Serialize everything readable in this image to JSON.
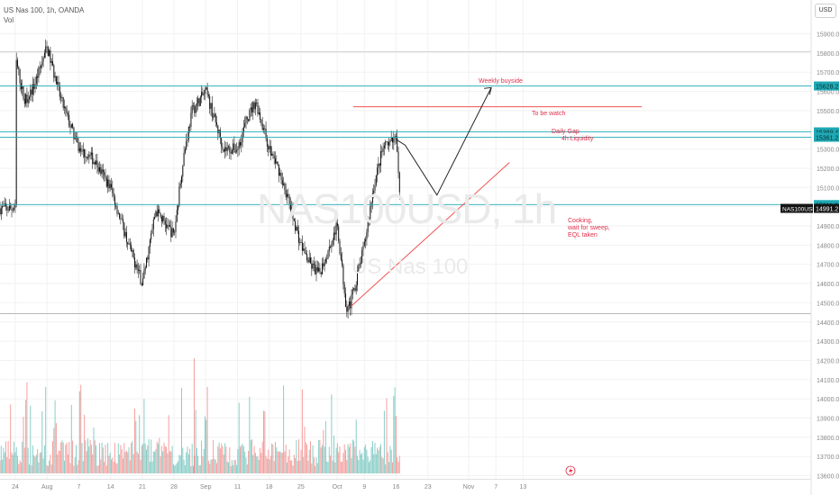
{
  "header": {
    "line1": "US Nas 100, 1h, OANDA",
    "line2": "Vol"
  },
  "currency_button": "USD",
  "watermark": {
    "symbol": "NAS100USD, 1h",
    "name": "US Nas 100"
  },
  "colors": {
    "up": "#26a69a",
    "down": "#ef5350",
    "level": "#1fa9b4",
    "annotation": "#e0314b",
    "axis_text": "#888888"
  },
  "annotations": {
    "weekly_buyside": "Weekly buyside",
    "to_be_watch": "To be watch",
    "daily_gap": "Daily Gap",
    "liquidity_4h": "4h Liquidity",
    "cooking": [
      "Cooking,",
      "wait for sweep,",
      "EQL taken"
    ]
  },
  "chart_data": {
    "type": "candlestick",
    "title": "US Nas 100, 1h, OANDA",
    "symbol": "NAS100USD",
    "xlabel": "",
    "ylabel": "",
    "ylim": [
      13600,
      15900
    ],
    "y_ticks": [
      15900,
      15800,
      15700,
      15600,
      15500,
      15400,
      15300,
      15200,
      15100,
      15000,
      14900,
      14800,
      14700,
      14600,
      14500,
      14400,
      14300,
      14200,
      14100,
      14000,
      13900,
      13800,
      13700,
      13600
    ],
    "x_ticks": [
      "24",
      "Aug",
      "7",
      "14",
      "21",
      "28",
      "Sep",
      "11",
      "18",
      "25",
      "Oct",
      "9",
      "16",
      "23",
      "Nov",
      "7",
      "13"
    ],
    "price_path": [
      [
        "Jul 24",
        15780
      ],
      [
        "Jul 26",
        15550
      ],
      [
        "Jul 28",
        15620
      ],
      [
        "Jul 31",
        15830
      ],
      [
        "Aug 3",
        15560
      ],
      [
        "Aug 7",
        15300
      ],
      [
        "Aug 10",
        15250
      ],
      [
        "Aug 14",
        15100
      ],
      [
        "Aug 18",
        14800
      ],
      [
        "Aug 21",
        14600
      ],
      [
        "Aug 24",
        14980
      ],
      [
        "Aug 28",
        14850
      ],
      [
        "Aug 30",
        15250
      ],
      [
        "Sep 1",
        15500
      ],
      [
        "Sep 4",
        15600
      ],
      [
        "Sep 6",
        15450
      ],
      [
        "Sep 8",
        15300
      ],
      [
        "Sep 11",
        15300
      ],
      [
        "Sep 13",
        15450
      ],
      [
        "Sep 15",
        15550
      ],
      [
        "Sep 18",
        15300
      ],
      [
        "Sep 20",
        15200
      ],
      [
        "Sep 22",
        15050
      ],
      [
        "Sep 25",
        14800
      ],
      [
        "Sep 27",
        14700
      ],
      [
        "Sep 29",
        14650
      ],
      [
        "Oct 3",
        14900
      ],
      [
        "Oct 5",
        14480
      ],
      [
        "Oct 6",
        14500
      ],
      [
        "Oct 9",
        14800
      ],
      [
        "Oct 11",
        15100
      ],
      [
        "Oct 13",
        15300
      ],
      [
        "Oct 16",
        15350
      ],
      [
        "Oct 17",
        14991
      ]
    ],
    "price_levels": [
      {
        "label": "15628.2",
        "value": 15628.2
      },
      {
        "label": "15389.4",
        "value": 15389.4
      },
      {
        "label": "15361.2",
        "value": 15361.2
      },
      {
        "label": "15011.0",
        "value": 15011.0
      }
    ],
    "last_price": {
      "symbol": "NAS100USD",
      "label": "14991.2",
      "value": 14991.2
    },
    "to_be_watch_level": 15520,
    "trendline": [
      [
        "Oct 6",
        14480
      ],
      [
        "Nov 10",
        15230
      ]
    ],
    "projection": [
      [
        "Oct 16",
        15350
      ],
      [
        "Oct 18",
        15320
      ],
      [
        "Oct 25",
        15060
      ],
      [
        "Nov 6",
        15620
      ]
    ]
  }
}
